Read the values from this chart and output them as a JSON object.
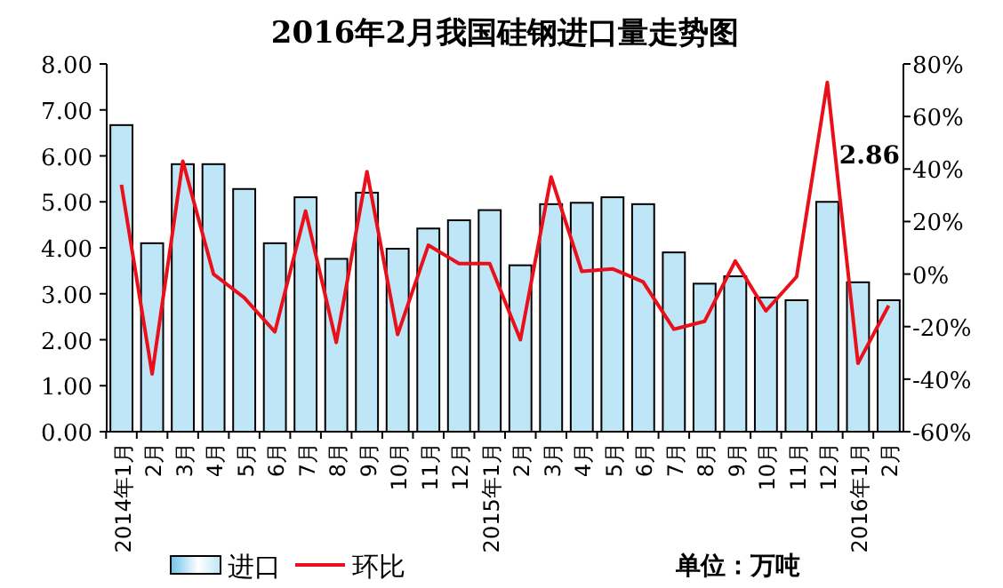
{
  "chart_data": {
    "type": "bar",
    "title": "2016年2月我国硅钢进口量走势图",
    "categories": [
      "2014年1月",
      "2月",
      "3月",
      "4月",
      "5月",
      "6月",
      "7月",
      "8月",
      "9月",
      "10月",
      "11月",
      "12月",
      "2015年1月",
      "2月",
      "3月",
      "4月",
      "5月",
      "6月",
      "7月",
      "8月",
      "9月",
      "10月",
      "11月",
      "12月",
      "2016年1月",
      "2月"
    ],
    "series": [
      {
        "name": "进口",
        "color": "#bfe6f7",
        "values": [
          6.67,
          4.1,
          5.82,
          5.82,
          5.28,
          4.1,
          5.1,
          3.76,
          5.2,
          3.98,
          4.42,
          4.6,
          4.82,
          3.62,
          4.95,
          4.98,
          5.1,
          4.95,
          3.9,
          3.22,
          3.38,
          2.92,
          2.86,
          5.0,
          3.25,
          2.86
        ]
      },
      {
        "name": "环比",
        "type": "line",
        "axis": "y2",
        "color": "#e8101a",
        "values": [
          34,
          -38,
          43,
          0,
          -9,
          -22,
          24,
          -26,
          39,
          -23,
          11,
          4,
          4,
          -25,
          37,
          1,
          2,
          -3,
          -21,
          -18,
          5,
          -14,
          -1,
          73,
          -34,
          -12
        ]
      }
    ],
    "ylim": [
      0,
      8
    ],
    "yticks": [
      {
        "value": 0,
        "label": "0.00"
      },
      {
        "value": 1,
        "label": "1.00"
      },
      {
        "value": 2,
        "label": "2.00"
      },
      {
        "value": 3,
        "label": "3.00"
      },
      {
        "value": 4,
        "label": "4.00"
      },
      {
        "value": 5,
        "label": "5.00"
      },
      {
        "value": 6,
        "label": "6.00"
      },
      {
        "value": 7,
        "label": "7.00"
      },
      {
        "value": 8,
        "label": "8.00"
      }
    ],
    "y2lim": [
      -60,
      80
    ],
    "y2ticks": [
      {
        "value": -60,
        "label": "-60%"
      },
      {
        "value": -40,
        "label": "-40%"
      },
      {
        "value": -20,
        "label": "-20%"
      },
      {
        "value": 0,
        "label": "0%"
      },
      {
        "value": 20,
        "label": "20%"
      },
      {
        "value": 40,
        "label": "40%"
      },
      {
        "value": 60,
        "label": "60%"
      },
      {
        "value": 80,
        "label": "80%"
      }
    ],
    "annotations": [
      "2.86",
      "单位：万吨"
    ],
    "legend": "bottom left",
    "grid": false
  }
}
